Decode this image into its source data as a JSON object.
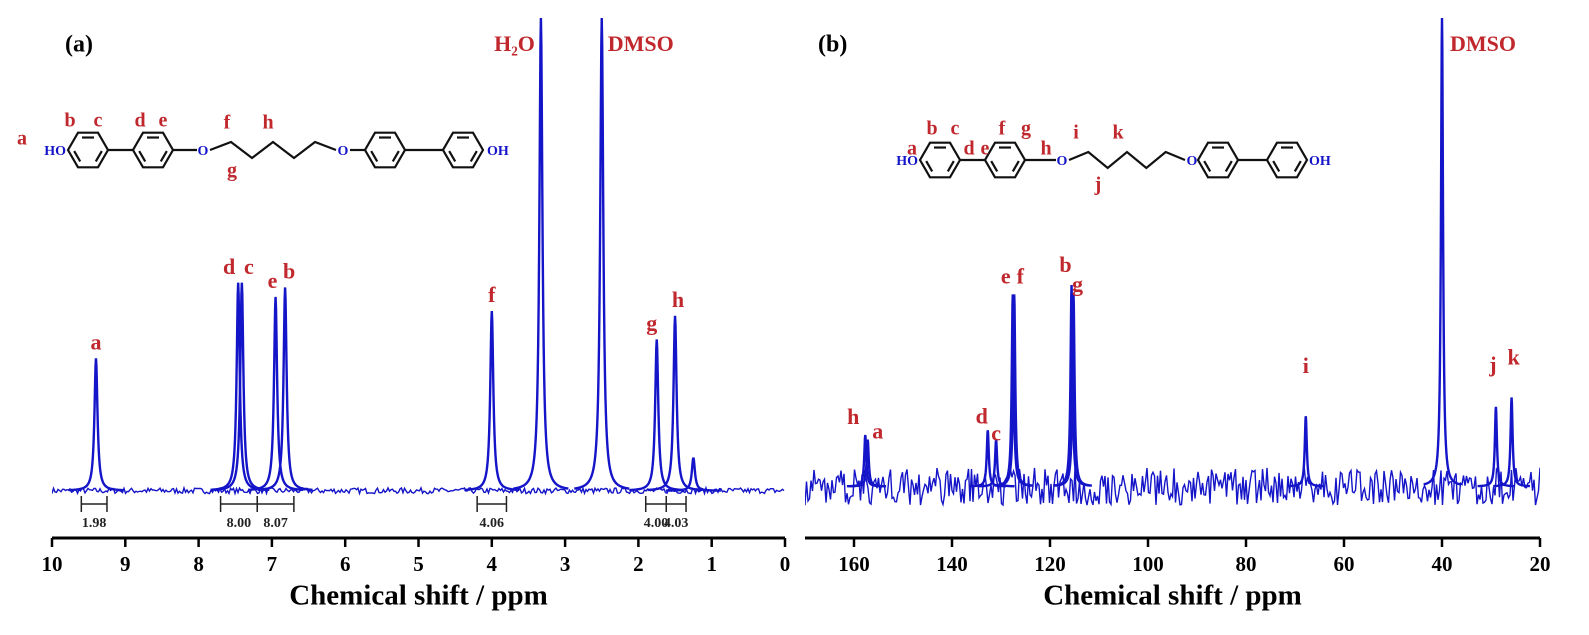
{
  "chart_data": [
    {
      "type": "spectrum",
      "panel_label": "(a)",
      "xlabel": "Chemical shift / ppm",
      "xlim": [
        10,
        0
      ],
      "xticks": [
        10,
        9,
        8,
        7,
        6,
        5,
        4,
        3,
        2,
        1,
        0
      ],
      "ylim": [
        -10,
        100
      ],
      "color": "#1414c8",
      "label_color": "#c0282d",
      "noise": 0.6,
      "peaks": {
        "x": [
          9.4,
          7.46,
          7.41,
          6.95,
          6.82,
          4.0,
          3.33,
          2.5,
          1.75,
          1.5,
          1.25
        ],
        "values": [
          28,
          44,
          44,
          41,
          43,
          38,
          100,
          100,
          32,
          37,
          7
        ],
        "labels": [
          "a",
          "d",
          "c",
          "e",
          "b",
          "f",
          "H₂O",
          "DMSO",
          "g",
          "h",
          null
        ]
      },
      "integrals": {
        "ranges": [
          [
            9.6,
            9.25
          ],
          [
            7.7,
            7.2
          ],
          [
            7.2,
            6.7
          ],
          [
            4.2,
            3.8
          ],
          [
            1.9,
            1.62
          ],
          [
            1.62,
            1.35
          ]
        ],
        "values": [
          1.98,
          8,
          8.07,
          4.06,
          4,
          4.03
        ],
        "value_labels": [
          "1.98",
          "8.00",
          "8.07",
          "4.06",
          "4.00",
          "4.03"
        ]
      },
      "structure": {
        "labels": [
          "a",
          "b",
          "c",
          "d",
          "e",
          "f",
          "g",
          "h"
        ],
        "groups": [
          "HO",
          "O",
          "O",
          "OH"
        ]
      }
    },
    {
      "type": "spectrum",
      "panel_label": "(b)",
      "xlabel": "Chemical shift / ppm",
      "xlim": [
        170,
        20
      ],
      "xticks": [
        160,
        140,
        120,
        100,
        80,
        60,
        40,
        20
      ],
      "ylim": [
        -11,
        100
      ],
      "color": "#1414c8",
      "label_color": "#c0282d",
      "noise": 4,
      "peaks": {
        "x": [
          157.7,
          157.2,
          132.7,
          131,
          127.6,
          127.3,
          115.6,
          115.2,
          67.8,
          40,
          29,
          25.8
        ],
        "values": [
          11,
          10,
          12,
          10,
          41,
          41,
          43,
          41,
          15,
          100,
          17,
          19
        ],
        "labels": [
          "h",
          "a",
          "d",
          "c",
          "e",
          "f",
          "b",
          "g",
          "i",
          "DMSO",
          "j",
          "k"
        ]
      },
      "structure": {
        "labels": [
          "a",
          "b",
          "c",
          "d",
          "e",
          "f",
          "g",
          "h",
          "i",
          "j",
          "k"
        ],
        "groups": [
          "HO",
          "O",
          "O",
          "OH"
        ]
      }
    }
  ]
}
